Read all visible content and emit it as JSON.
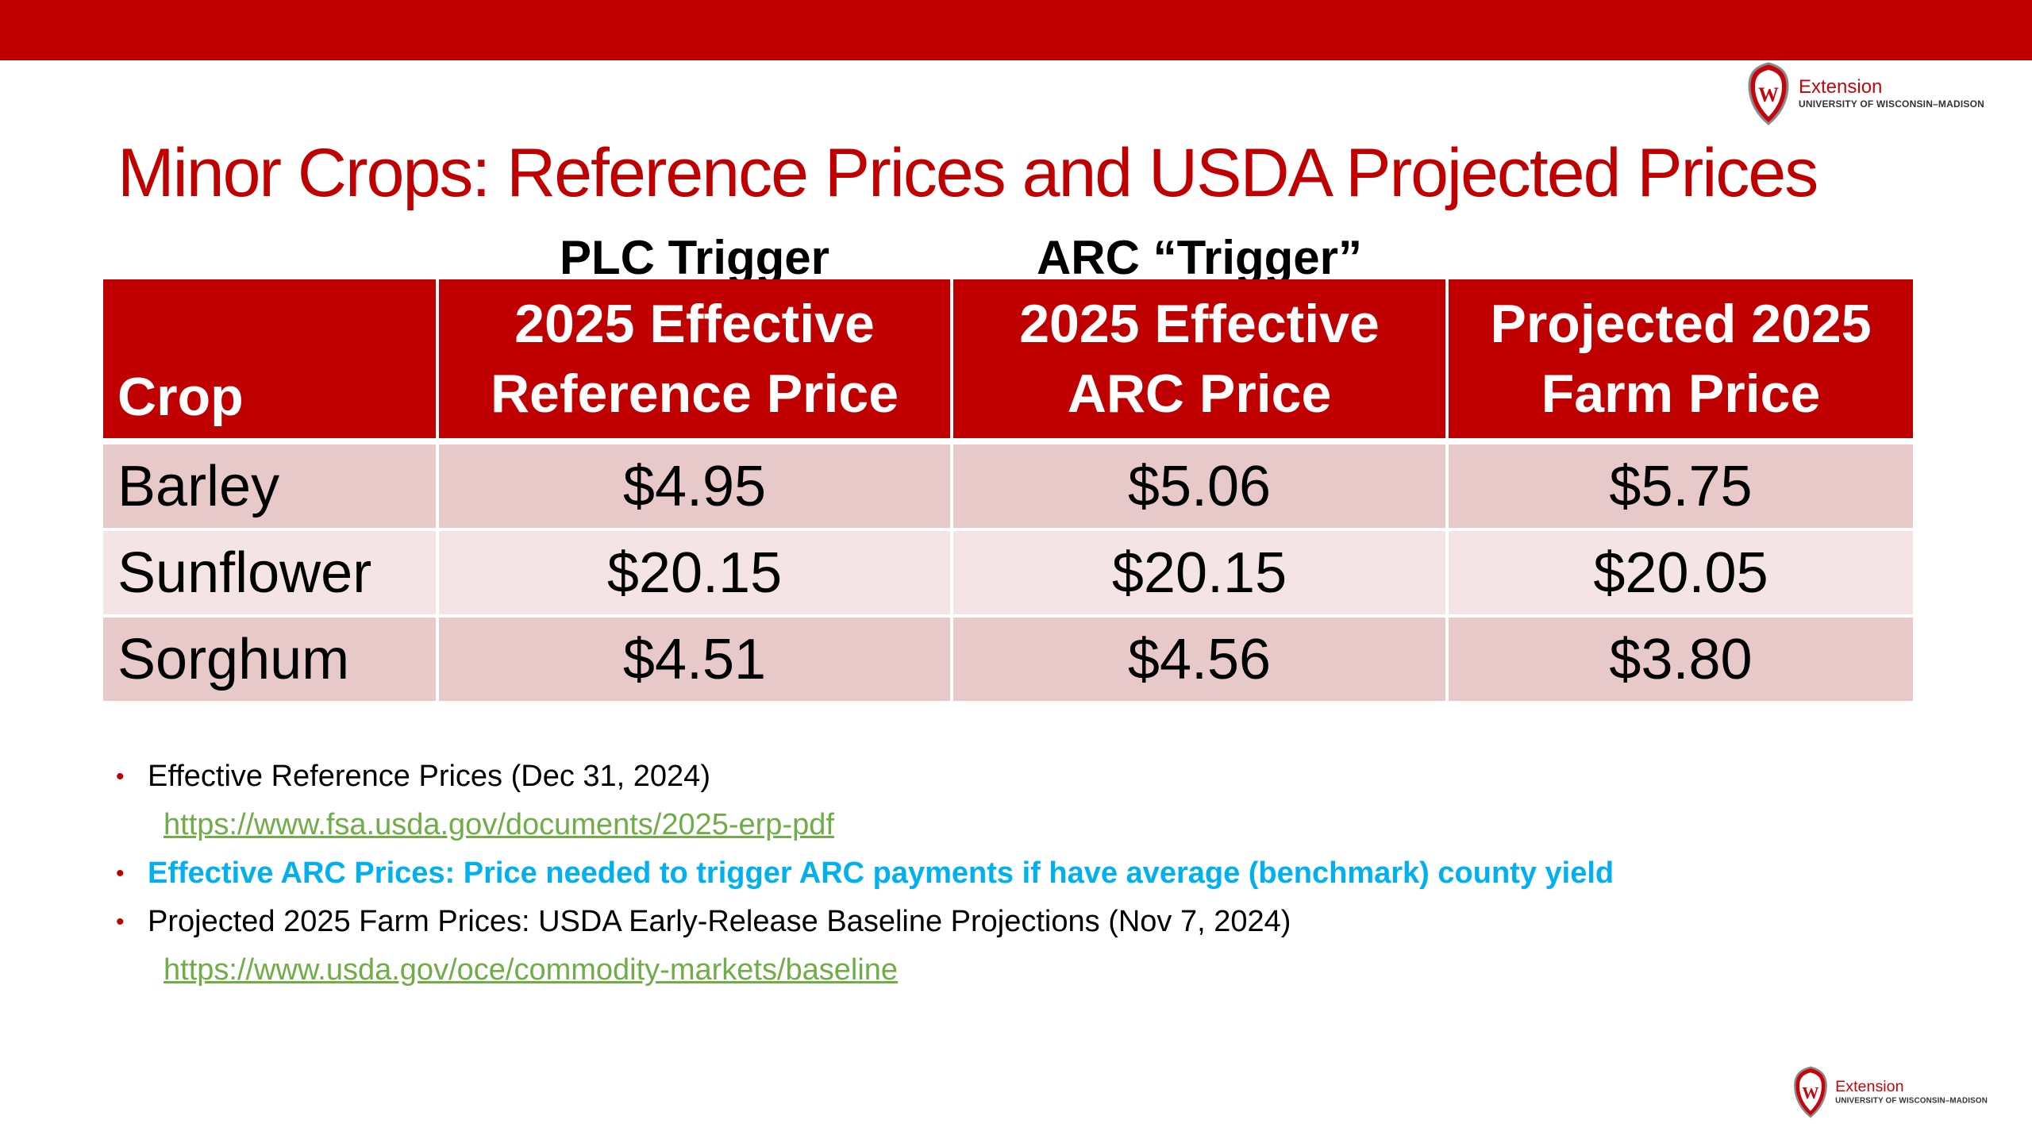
{
  "brand": {
    "logo_word": "Extension",
    "logo_sub": "UNIVERSITY OF WISCONSIN–MADISON",
    "crest_letter": "W",
    "colors": {
      "bar": "#c00000",
      "crest": "#c5050c",
      "link": "#70ad47",
      "highlight": "#00b0f0"
    }
  },
  "title": "Minor Crops: Reference Prices and USDA Projected Prices",
  "triggers": {
    "plc": "PLC Trigger",
    "arc": "ARC “Trigger”"
  },
  "table": {
    "headers": {
      "crop": "Crop",
      "ref_line1": "2025 Effective",
      "ref_line2": "Reference Price",
      "arc_line1": "2025 Effective",
      "arc_line2": "ARC Price",
      "proj_line1": "Projected 2025",
      "proj_line2": "Farm Price"
    },
    "rows": [
      {
        "crop": "Barley",
        "reference": "$4.95",
        "arc": "$5.06",
        "projected": "$5.75"
      },
      {
        "crop": "Sunflower",
        "reference": "$20.15",
        "arc": "$20.15",
        "projected": "$20.05"
      },
      {
        "crop": "Sorghum",
        "reference": "$4.51",
        "arc": "$4.56",
        "projected": "$3.80"
      }
    ]
  },
  "notes": {
    "bullet": "•",
    "n1_text": "Effective Reference Prices (Dec 31, 2024)",
    "n1_link": "https://www.fsa.usda.gov/documents/2025-erp-pdf",
    "n2_text": "Effective ARC Prices: Price needed to trigger ARC payments if have average (benchmark) county yield",
    "n3_text": "Projected 2025 Farm Prices: USDA Early-Release Baseline Projections (Nov 7, 2024)",
    "n3_link": "https://www.usda.gov/oce/commodity-markets/baseline"
  }
}
